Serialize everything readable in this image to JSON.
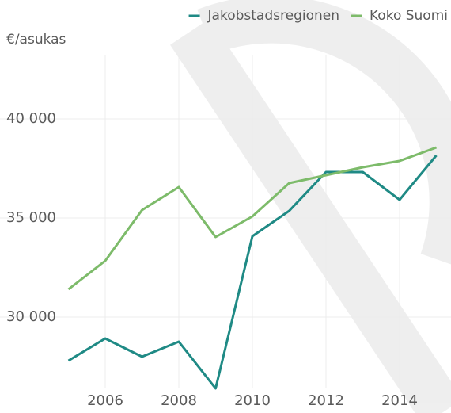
{
  "chart_data": {
    "type": "line",
    "y_axis_label": "€/asukas",
    "x": [
      2005,
      2006,
      2007,
      2008,
      2009,
      2010,
      2011,
      2012,
      2013,
      2014,
      2015
    ],
    "series": [
      {
        "name": "Jakobstadsregionen",
        "color": "#1f8a85",
        "values": [
          27800,
          28920,
          28000,
          28760,
          26400,
          34080,
          35360,
          37320,
          37320,
          35920,
          38160
        ]
      },
      {
        "name": "Koko Suomi",
        "color": "#7dbb6a",
        "values": [
          31400,
          32840,
          35400,
          36560,
          34040,
          35080,
          36760,
          37160,
          37560,
          37880,
          38560
        ]
      }
    ],
    "xlim": [
      2005,
      2015.4
    ],
    "ylim": [
      26400,
      43200
    ],
    "xticks": [
      2006,
      2008,
      2010,
      2012,
      2014
    ],
    "yticks": [
      {
        "value": 30000,
        "label": "30 000"
      },
      {
        "value": 35000,
        "label": "35 000"
      },
      {
        "value": 40000,
        "label": "40 000"
      }
    ],
    "grid": true
  }
}
